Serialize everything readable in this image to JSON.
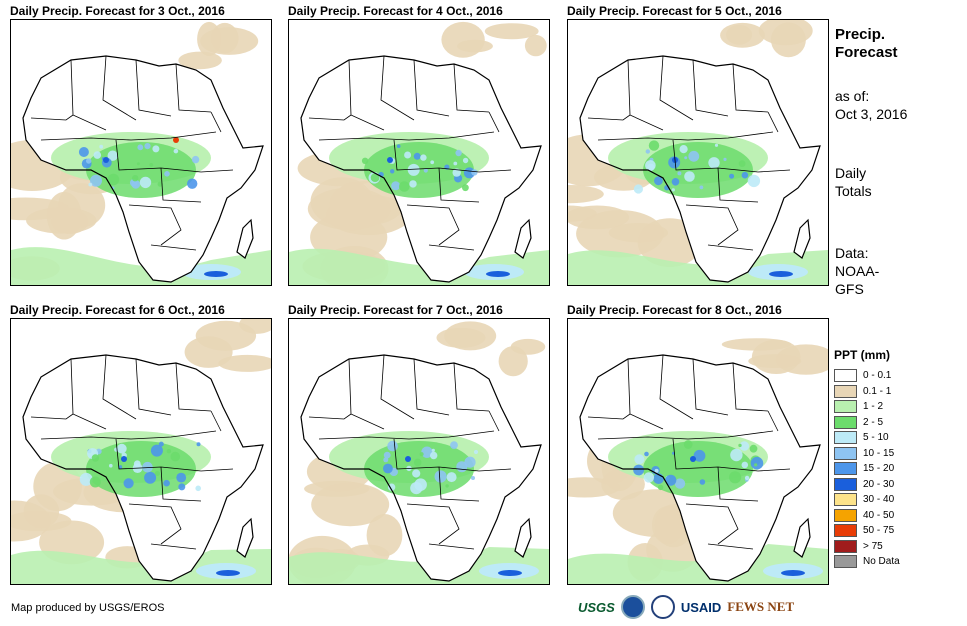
{
  "panels": [
    {
      "title": "Daily Precip. Forecast for 3 Oct., 2016"
    },
    {
      "title": "Daily Precip. Forecast for 4 Oct., 2016"
    },
    {
      "title": "Daily Precip. Forecast for 5 Oct., 2016"
    },
    {
      "title": "Daily Precip. Forecast for 6 Oct., 2016"
    },
    {
      "title": "Daily Precip. Forecast for 7 Oct., 2016"
    },
    {
      "title": "Daily Precip. Forecast for 8 Oct., 2016"
    }
  ],
  "side": {
    "title_line1": "Precip.",
    "title_line2": "Forecast",
    "asof_label": "as of:",
    "asof_date": "Oct 3, 2016",
    "totals_line1": "Daily",
    "totals_line2": "Totals",
    "data_line1": "Data:",
    "data_line2": "NOAA-",
    "data_line3": "GFS"
  },
  "legend": {
    "title": "PPT (mm)",
    "items": [
      {
        "label": "0 - 0.1",
        "color": "#ffffff"
      },
      {
        "label": "0.1 - 1",
        "color": "#e8d6b6"
      },
      {
        "label": "1 - 2",
        "color": "#b9f0b0"
      },
      {
        "label": "2 - 5",
        "color": "#6cdc6c"
      },
      {
        "label": "5 - 10",
        "color": "#bdeaf7"
      },
      {
        "label": "10 - 15",
        "color": "#8ec4f2"
      },
      {
        "label": "15 - 20",
        "color": "#4d96ea"
      },
      {
        "label": "20 - 30",
        "color": "#1a5fdc"
      },
      {
        "label": "30 - 40",
        "color": "#fde38a"
      },
      {
        "label": "40 - 50",
        "color": "#f5a300"
      },
      {
        "label": "50 - 75",
        "color": "#e83c06"
      },
      {
        "label": "> 75",
        "color": "#a01c1c"
      },
      {
        "label": "No Data",
        "color": "#999999"
      }
    ]
  },
  "credit": "Map produced by USGS/EROS",
  "logos": {
    "usgs": "USGS",
    "usaid": "USAID",
    "fewsnet": "FEWS NET"
  }
}
